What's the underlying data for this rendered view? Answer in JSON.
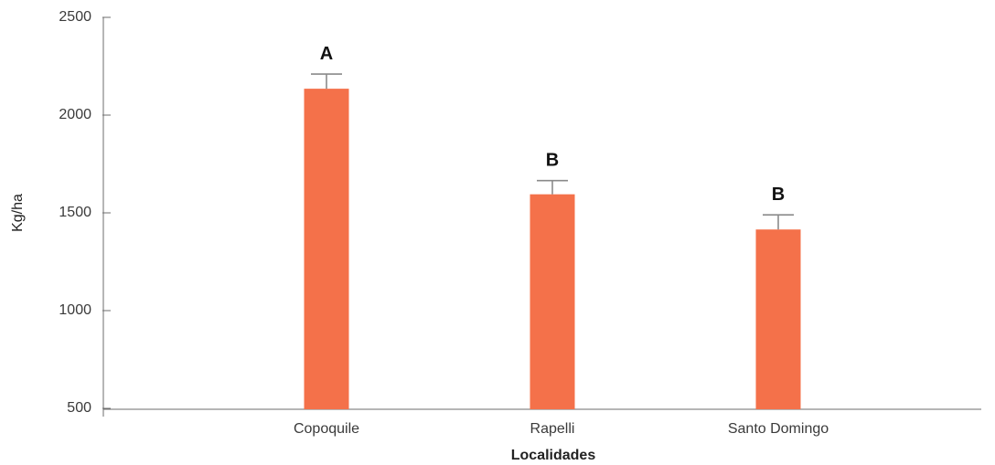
{
  "chart_data": {
    "type": "bar",
    "title": "",
    "xlabel": "Localidades",
    "ylabel": "Kg/ha",
    "ylim": [
      500,
      2500
    ],
    "yticks": [
      500,
      1000,
      1500,
      2000,
      2500
    ],
    "grid": false,
    "categories": [
      "Copoquile",
      "Rapelli",
      "Santo Domingo"
    ],
    "values": [
      2135,
      1595,
      1415
    ],
    "error_upper": [
      2210,
      1665,
      1490
    ],
    "significance_labels": [
      "A",
      "B",
      "B"
    ],
    "bar_color": "#f4714a",
    "error_bar_color": "#8a8a8a"
  }
}
